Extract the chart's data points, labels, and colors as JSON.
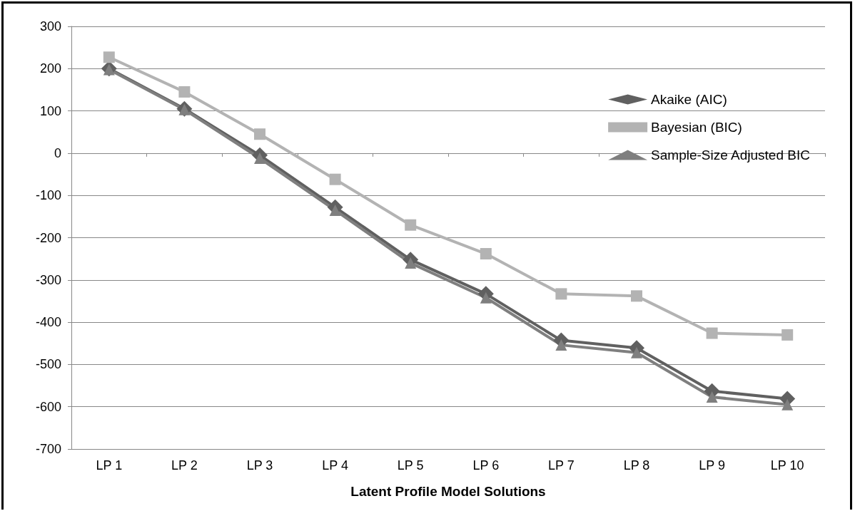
{
  "chart_data": {
    "type": "line",
    "xlabel": "Latent Profile Model Solutions",
    "categories": [
      "LP 1",
      "LP 2",
      "LP 3",
      "LP 4",
      "LP 5",
      "LP 6",
      "LP 7",
      "LP 8",
      "LP 9",
      "LP 10"
    ],
    "series": [
      {
        "name": "Akaike (AIC)",
        "color": "#606060",
        "marker": "diamond",
        "values": [
          200,
          105,
          -5,
          -128,
          -252,
          -333,
          -443,
          -461,
          -563,
          -581
        ]
      },
      {
        "name": "Bayesian (BIC)",
        "color": "#b3b3b3",
        "marker": "square",
        "values": [
          227,
          145,
          45,
          -62,
          -170,
          -238,
          -333,
          -338,
          -426,
          -430
        ]
      },
      {
        "name": "Sample-Size Adjusted BIC",
        "color": "#7f7f7f",
        "marker": "triangle",
        "values": [
          198,
          103,
          -12,
          -135,
          -260,
          -342,
          -454,
          -472,
          -577,
          -595
        ]
      }
    ],
    "ylim": [
      -700,
      300
    ],
    "yticks": [
      -700,
      -600,
      -500,
      -400,
      -300,
      -200,
      -100,
      0,
      100,
      200,
      300
    ],
    "grid": "y",
    "legend": "right",
    "line_style": "solid"
  }
}
